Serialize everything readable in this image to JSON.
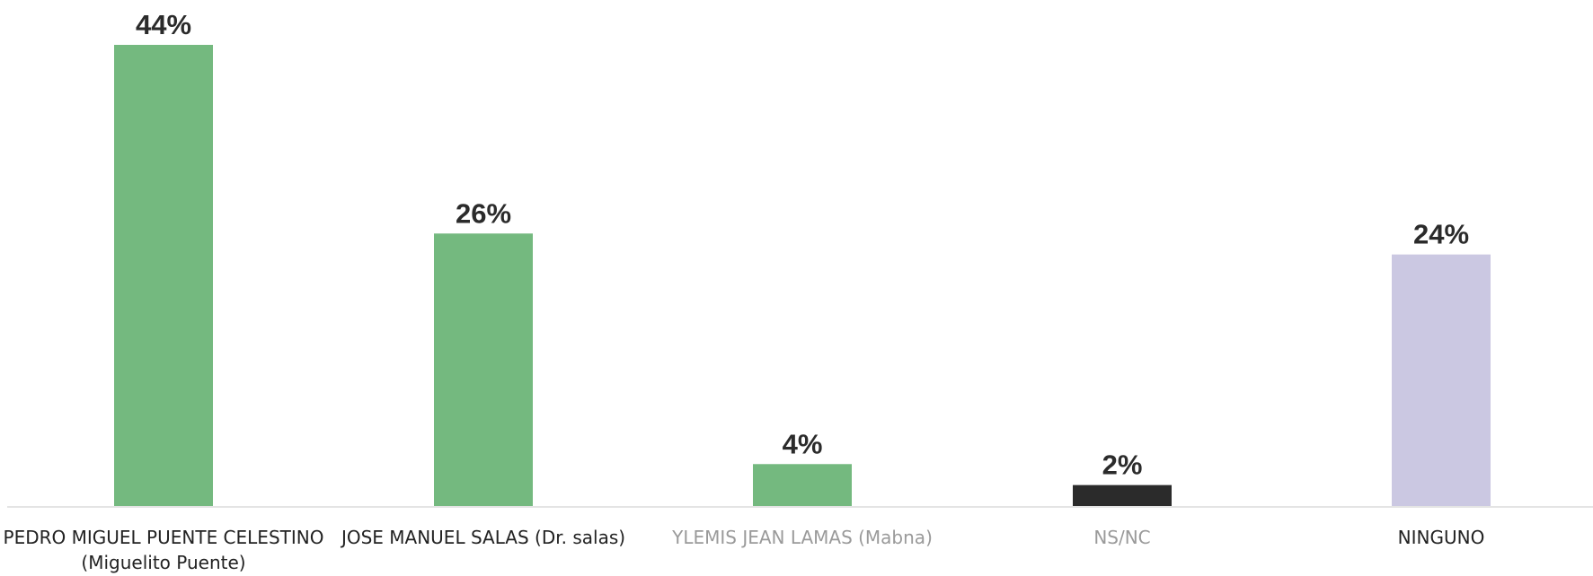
{
  "chart_data": {
    "type": "bar",
    "categories": [
      "PEDRO MIGUEL PUENTE CELESTINO\n(Miguelito Puente)",
      "JOSE MANUEL SALAS (Dr. salas)",
      "YLEMIS JEAN LAMAS (Mabna)",
      "NS/NC",
      "NINGUNO"
    ],
    "values": [
      44,
      26,
      4,
      2,
      24
    ],
    "value_labels": [
      "44%",
      "26%",
      "4%",
      "2%",
      "24%"
    ],
    "bar_colors": [
      "#74b97f",
      "#74b97f",
      "#74b97f",
      "#2b2b2b",
      "#cbc8e2"
    ],
    "label_colors": [
      "#222222",
      "#222222",
      "#9a9a9a",
      "#9a9a9a",
      "#222222"
    ],
    "ylim": [
      0,
      44
    ],
    "grid": false,
    "legend": "none"
  }
}
